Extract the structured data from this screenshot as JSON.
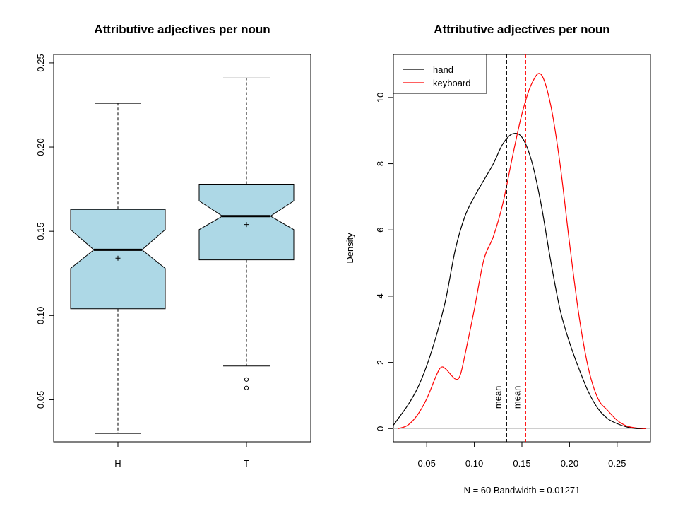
{
  "chart_data": [
    {
      "type": "boxplot",
      "title": "Attributive adjectives per noun",
      "xlabel": "",
      "ylabel": "",
      "notched": true,
      "box_color": "#add8e6",
      "ylim": [
        0.025,
        0.255
      ],
      "yticks": [
        0.05,
        0.1,
        0.15,
        0.2,
        0.25
      ],
      "ytick_labels": [
        "0.05",
        "0.10",
        "0.15",
        "0.20",
        "0.25"
      ],
      "categories": [
        "H",
        "T"
      ],
      "boxes": [
        {
          "category": "H",
          "whisker_low": 0.03,
          "q1": 0.104,
          "median": 0.139,
          "q3": 0.163,
          "whisker_high": 0.226,
          "notch_low": 0.128,
          "notch_high": 0.151,
          "mean": 0.134,
          "outliers": []
        },
        {
          "category": "T",
          "whisker_low": 0.07,
          "q1": 0.133,
          "median": 0.159,
          "q3": 0.178,
          "whisker_high": 0.241,
          "notch_low": 0.151,
          "notch_high": 0.168,
          "mean": 0.154,
          "outliers": [
            0.062,
            0.057
          ]
        }
      ]
    },
    {
      "type": "line",
      "title": "Attributive adjectives per noun",
      "xlabel": "N = 60   Bandwidth = 0.01271",
      "ylabel": "Density",
      "xlim": [
        0.015,
        0.285
      ],
      "ylim": [
        -0.4,
        11.3
      ],
      "xticks": [
        0.05,
        0.1,
        0.15,
        0.2,
        0.25
      ],
      "xtick_labels": [
        "0.05",
        "0.10",
        "0.15",
        "0.20",
        "0.25"
      ],
      "yticks": [
        0,
        2,
        4,
        6,
        8,
        10
      ],
      "ytick_labels": [
        "0",
        "2",
        "4",
        "6",
        "8",
        "10"
      ],
      "legend_position": "top-left",
      "series": [
        {
          "name": "hand",
          "color": "#000000",
          "x": [
            0.012,
            0.02,
            0.03,
            0.04,
            0.05,
            0.06,
            0.07,
            0.08,
            0.09,
            0.1,
            0.11,
            0.12,
            0.13,
            0.14,
            0.15,
            0.16,
            0.17,
            0.18,
            0.19,
            0.2,
            0.21,
            0.22,
            0.23,
            0.24,
            0.25,
            0.26,
            0.27,
            0.28
          ],
          "y": [
            0.1,
            0.3,
            0.7,
            1.2,
            1.9,
            2.8,
            3.9,
            5.4,
            6.4,
            7.0,
            7.5,
            8.0,
            8.6,
            8.9,
            8.8,
            8.1,
            6.8,
            5.1,
            3.6,
            2.6,
            1.8,
            1.1,
            0.6,
            0.3,
            0.15,
            0.05,
            0.0,
            0.0
          ]
        },
        {
          "name": "keyboard",
          "color": "#ff0000",
          "x": [
            0.02,
            0.03,
            0.04,
            0.05,
            0.06,
            0.065,
            0.07,
            0.08,
            0.085,
            0.09,
            0.1,
            0.11,
            0.12,
            0.13,
            0.14,
            0.15,
            0.16,
            0.17,
            0.18,
            0.19,
            0.2,
            0.21,
            0.22,
            0.23,
            0.24,
            0.25,
            0.26,
            0.27,
            0.28
          ],
          "y": [
            0.0,
            0.1,
            0.4,
            0.9,
            1.6,
            1.85,
            1.8,
            1.5,
            1.6,
            2.2,
            3.6,
            5.1,
            5.8,
            6.8,
            8.2,
            9.5,
            10.4,
            10.7,
            9.8,
            8.0,
            5.6,
            3.4,
            1.8,
            0.9,
            0.55,
            0.25,
            0.08,
            0.02,
            0.0
          ]
        }
      ],
      "reference_lines": [
        {
          "x": 0.134,
          "color": "#000000",
          "style": "dashed",
          "label": "mean"
        },
        {
          "x": 0.154,
          "color": "#ff0000",
          "style": "dashed",
          "label": "mean"
        }
      ],
      "baseline_color": "#bebebe"
    }
  ]
}
